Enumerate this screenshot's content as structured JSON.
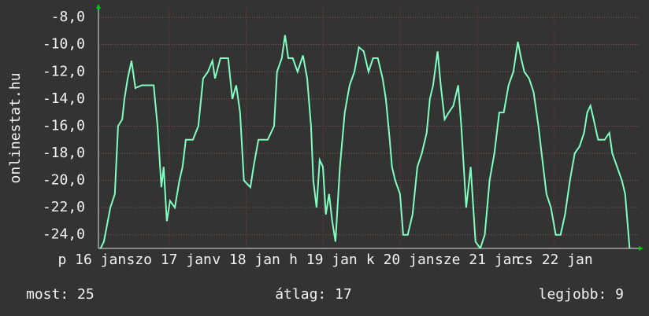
{
  "chart_data": {
    "type": "line",
    "y_label": "onlinestat.hu",
    "xlim": [
      0,
      168
    ],
    "xticks": [
      {
        "value": -2,
        "label": "p 16 jan"
      },
      {
        "value": 22,
        "label": "szo 17 jan"
      },
      {
        "value": 46,
        "label": "v 18 jan"
      },
      {
        "value": 70,
        "label": "h 19 jan"
      },
      {
        "value": 94,
        "label": "k 20 jan"
      },
      {
        "value": 118,
        "label": "sze 21 jan"
      },
      {
        "value": 142,
        "label": "cs 22 jan"
      }
    ],
    "ylim": [
      -25,
      -7.3
    ],
    "yticks": [
      {
        "value": -8,
        "label": "-8,0"
      },
      {
        "value": -10,
        "label": "-10,0"
      },
      {
        "value": -12,
        "label": "-12,0"
      },
      {
        "value": -14,
        "label": "-14,0"
      },
      {
        "value": -16,
        "label": "-16,0"
      },
      {
        "value": -18,
        "label": "-18,0"
      },
      {
        "value": -20,
        "label": "-20,0"
      },
      {
        "value": -22,
        "label": "-22,0"
      },
      {
        "value": -24,
        "label": "-24,0"
      }
    ],
    "grid": true,
    "series": [
      {
        "color": "#80ffc0",
        "x": [
          0,
          1.7,
          3.7,
          5.1,
          6.1,
          7.4,
          8.1,
          9.1,
          10.3,
          11.5,
          13.5,
          17.2,
          18.4,
          19.6,
          20.3,
          21.3,
          22.3,
          23.8,
          25.2,
          26.2,
          27.2,
          29.4,
          31.1,
          32.6,
          34.1,
          35.5,
          36.3,
          38,
          40.4,
          41.7,
          42.9,
          44.1,
          45.3,
          47.3,
          48.3,
          49.8,
          52.7,
          54.7,
          55.6,
          57.1,
          58.1,
          59.1,
          60.5,
          62,
          63.7,
          65,
          66.2,
          66.9,
          67.9,
          68.9,
          69.9,
          70.8,
          71.8,
          72.8,
          73.8,
          75.2,
          76.7,
          78.2,
          79.7,
          81.1,
          82.6,
          84.1,
          85.5,
          87,
          88.5,
          89.5,
          90.7,
          91.4,
          92.4,
          93.9,
          94.9,
          96.3,
          97.8,
          99.3,
          100.7,
          102.2,
          103.2,
          104.2,
          105.6,
          106.6,
          107.8,
          109.1,
          110.5,
          112,
          113,
          114.5,
          115.9,
          117.4,
          118.9,
          120.3,
          121.8,
          123.3,
          124.8,
          126.2,
          127.7,
          129.2,
          130.6,
          131.6,
          132.6,
          134.1,
          135.5,
          137,
          138.5,
          139.5,
          140.9,
          142.4,
          143.9,
          145.3,
          146.8,
          148.3,
          149.8,
          151.2,
          152.2,
          153.2,
          154.2,
          155.6,
          157.6,
          159.1,
          160,
          161.5,
          163,
          164,
          165.4,
          166.9,
          167.9
        ],
        "values": [
          -25.3,
          -24.5,
          -22,
          -21,
          -16,
          -15.5,
          -14,
          -12.5,
          -11.2,
          -13.2,
          -13,
          -13,
          -16,
          -20.5,
          -19,
          -23,
          -21.5,
          -22,
          -20,
          -19,
          -17,
          -17,
          -16,
          -12.5,
          -12,
          -11.2,
          -12.5,
          -11,
          -11,
          -14,
          -13,
          -15,
          -20,
          -20.5,
          -19,
          -17,
          -17,
          -16,
          -12,
          -11,
          -9.3,
          -11,
          -11,
          -12,
          -10.8,
          -12.5,
          -16,
          -20,
          -22,
          -18.5,
          -19,
          -22.5,
          -21,
          -23,
          -24.5,
          -19,
          -15,
          -13,
          -12,
          -10.2,
          -10.5,
          -12,
          -11,
          -11,
          -12.5,
          -14,
          -17,
          -19,
          -20,
          -21,
          -24,
          -24,
          -22.5,
          -19,
          -18,
          -16.5,
          -14,
          -13,
          -10.5,
          -13,
          -15.5,
          -15,
          -14.5,
          -13,
          -16,
          -22,
          -19,
          -24.5,
          -25,
          -24,
          -20,
          -18,
          -15,
          -15,
          -13,
          -12,
          -9.8,
          -11,
          -12,
          -12.5,
          -13.5,
          -16,
          -19,
          -21,
          -22,
          -24,
          -24,
          -22.5,
          -20,
          -18,
          -17.5,
          -16.5,
          -15,
          -14.5,
          -15.5,
          -17,
          -17,
          -16.5,
          -18,
          -19,
          -20,
          -21,
          -25,
          -25.3,
          -25.5
        ]
      }
    ],
    "footer": [
      "most: 25",
      "átlag: 17",
      "legjobb: 9"
    ]
  }
}
